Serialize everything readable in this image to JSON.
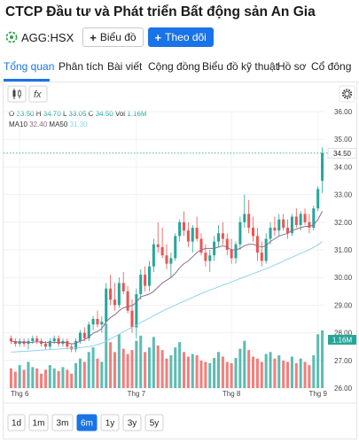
{
  "header": {
    "title": "CTCP Đầu tư và Phát triển Bất động sản An Gia",
    "ticker": "AGG:HSX",
    "chart_button": "Biểu đồ",
    "follow_button": "Theo dõi"
  },
  "tabs": [
    {
      "label": "Tổng quan"
    },
    {
      "label": "Phân tích"
    },
    {
      "label": "Bài viết"
    },
    {
      "label": "Cộng đồng"
    },
    {
      "label": "Biểu đồ kỹ thuật"
    },
    {
      "label": "Hồ sơ"
    },
    {
      "label": "Cổ đông"
    }
  ],
  "active_tab": "Tổng quan",
  "colors": {
    "accent": "#1a73e8",
    "up": "#26a69a",
    "down": "#ef5350",
    "ma10": "#8e6c8a",
    "ma50": "#8fd4ea"
  },
  "chart": {
    "ohlc": {
      "o_label": "O",
      "o_value": "33.50",
      "h_label": "H",
      "h_value": "34.70",
      "l_label": "L",
      "l_value": "33.05",
      "c_label": "C",
      "c_value": "34.50",
      "vol_label": "Vol",
      "vol_value": "1.16M"
    },
    "ma": {
      "ma10_label": "MA10",
      "ma10_value": "32.40",
      "ma50_label": "MA50",
      "ma50_value": "31.30"
    },
    "last_price_label": "34.50",
    "last_volume_label": "1.16M",
    "ranges": [
      "1d",
      "1m",
      "3m",
      "6m",
      "1y",
      "3y",
      "5y"
    ],
    "active_range": "6m",
    "icons": [
      "candlestick-icon",
      "function-icon",
      "settings-icon"
    ]
  },
  "chart_data": {
    "type": "candlestick",
    "y_axis": {
      "ticks": [
        "36.00",
        "35.00",
        "34.00",
        "33.00",
        "32.00",
        "31.00",
        "30.00",
        "29.00",
        "28.00",
        "27.00",
        "26.00"
      ],
      "ylim": [
        26,
        36
      ]
    },
    "x_axis": {
      "ticks": [
        "Thg 6",
        "Thg 7",
        "Thg 8",
        "Thg 9"
      ],
      "tick_positions": [
        2,
        29,
        51,
        71
      ]
    },
    "last_price": 34.5,
    "candles": [
      [
        27.8,
        27.9,
        27.6,
        27.7
      ],
      [
        27.7,
        27.8,
        27.5,
        27.6
      ],
      [
        27.6,
        27.8,
        27.5,
        27.7
      ],
      [
        27.7,
        27.8,
        27.5,
        27.6
      ],
      [
        27.6,
        27.8,
        27.4,
        27.7
      ],
      [
        27.7,
        27.9,
        27.6,
        27.8
      ],
      [
        27.8,
        27.9,
        27.6,
        27.7
      ],
      [
        27.7,
        27.8,
        27.5,
        27.6
      ],
      [
        27.6,
        27.7,
        27.4,
        27.5
      ],
      [
        27.5,
        27.8,
        27.4,
        27.7
      ],
      [
        27.7,
        27.9,
        27.6,
        27.8
      ],
      [
        27.8,
        27.9,
        27.5,
        27.6
      ],
      [
        27.6,
        27.8,
        27.5,
        27.7
      ],
      [
        27.7,
        27.8,
        27.4,
        27.5
      ],
      [
        27.5,
        27.6,
        27.3,
        27.4
      ],
      [
        27.4,
        27.8,
        27.3,
        27.7
      ],
      [
        27.7,
        28.1,
        27.6,
        28.0
      ],
      [
        28.0,
        28.2,
        27.7,
        27.8
      ],
      [
        27.8,
        28.4,
        27.7,
        28.3
      ],
      [
        28.3,
        28.6,
        28.1,
        28.5
      ],
      [
        28.5,
        28.8,
        28.2,
        28.3
      ],
      [
        28.3,
        28.6,
        28.0,
        28.4
      ],
      [
        28.4,
        29.8,
        28.3,
        29.6
      ],
      [
        29.6,
        30.1,
        29.0,
        29.2
      ],
      [
        29.2,
        29.8,
        28.8,
        29.0
      ],
      [
        29.0,
        30.0,
        28.9,
        29.8
      ],
      [
        29.8,
        30.2,
        29.4,
        29.5
      ],
      [
        29.5,
        29.7,
        28.7,
        28.8
      ],
      [
        28.8,
        29.2,
        28.0,
        28.2
      ],
      [
        28.2,
        29.6,
        27.8,
        29.4
      ],
      [
        29.4,
        30.3,
        29.2,
        30.1
      ],
      [
        30.1,
        30.4,
        29.5,
        29.7
      ],
      [
        29.7,
        30.6,
        29.5,
        30.4
      ],
      [
        30.4,
        31.4,
        30.2,
        31.2
      ],
      [
        31.2,
        32.0,
        30.9,
        31.1
      ],
      [
        31.1,
        31.8,
        30.7,
        30.8
      ],
      [
        30.8,
        31.2,
        30.3,
        30.5
      ],
      [
        30.5,
        30.9,
        30.0,
        30.7
      ],
      [
        30.7,
        31.6,
        30.6,
        31.5
      ],
      [
        31.5,
        32.1,
        31.3,
        32.0
      ],
      [
        32.0,
        32.4,
        31.5,
        31.7
      ],
      [
        31.7,
        32.0,
        31.1,
        31.3
      ],
      [
        31.3,
        31.9,
        30.9,
        31.8
      ],
      [
        31.8,
        32.2,
        31.3,
        31.4
      ],
      [
        31.4,
        31.6,
        30.8,
        30.9
      ],
      [
        30.9,
        31.2,
        30.4,
        30.6
      ],
      [
        30.6,
        31.0,
        30.2,
        30.8
      ],
      [
        30.8,
        31.5,
        30.6,
        31.3
      ],
      [
        31.3,
        31.9,
        31.1,
        31.6
      ],
      [
        31.6,
        32.0,
        31.2,
        31.4
      ],
      [
        31.4,
        31.6,
        30.8,
        31.0
      ],
      [
        31.0,
        31.4,
        30.5,
        30.7
      ],
      [
        30.7,
        31.3,
        30.5,
        31.2
      ],
      [
        31.2,
        32.2,
        31.0,
        32.0
      ],
      [
        32.0,
        33.0,
        31.8,
        32.3
      ],
      [
        32.3,
        32.8,
        31.6,
        31.8
      ],
      [
        31.8,
        32.2,
        31.3,
        31.5
      ],
      [
        31.5,
        31.8,
        30.6,
        30.9
      ],
      [
        30.9,
        31.3,
        30.4,
        30.6
      ],
      [
        30.6,
        31.6,
        30.5,
        31.4
      ],
      [
        31.4,
        32.0,
        31.2,
        31.8
      ],
      [
        31.8,
        32.2,
        31.5,
        31.7
      ],
      [
        31.7,
        32.3,
        31.5,
        32.1
      ],
      [
        32.1,
        32.3,
        31.7,
        31.8
      ],
      [
        31.8,
        32.1,
        31.4,
        31.6
      ],
      [
        31.6,
        32.3,
        31.5,
        32.2
      ],
      [
        32.2,
        32.5,
        31.8,
        31.9
      ],
      [
        31.9,
        32.4,
        31.7,
        32.3
      ],
      [
        32.3,
        32.5,
        31.9,
        32.0
      ],
      [
        32.0,
        32.3,
        31.6,
        31.8
      ],
      [
        31.8,
        32.6,
        31.7,
        32.5
      ],
      [
        32.5,
        33.3,
        32.4,
        33.2
      ],
      [
        33.5,
        34.7,
        33.05,
        34.5
      ]
    ],
    "volume_relative": [
      0.3,
      0.25,
      0.35,
      0.28,
      0.4,
      0.32,
      0.3,
      0.22,
      0.28,
      0.35,
      0.3,
      0.26,
      0.32,
      0.28,
      0.22,
      0.38,
      0.45,
      0.4,
      0.55,
      0.62,
      0.45,
      0.4,
      0.98,
      0.7,
      0.55,
      0.82,
      0.6,
      0.52,
      0.58,
      0.72,
      0.8,
      0.55,
      0.62,
      0.78,
      0.65,
      0.58,
      0.45,
      0.5,
      0.62,
      0.7,
      0.55,
      0.48,
      0.52,
      0.5,
      0.42,
      0.4,
      0.38,
      0.46,
      0.55,
      0.48,
      0.4,
      0.38,
      0.46,
      0.6,
      0.72,
      0.58,
      0.48,
      0.45,
      0.4,
      0.52,
      0.55,
      0.45,
      0.5,
      0.42,
      0.4,
      0.48,
      0.38,
      0.45,
      0.4,
      0.35,
      0.5,
      0.82,
      0.88
    ],
    "ma10": [
      27.7,
      27.68,
      27.66,
      27.66,
      27.65,
      27.66,
      27.68,
      27.66,
      27.64,
      27.65,
      27.66,
      27.65,
      27.66,
      27.64,
      27.6,
      27.62,
      27.7,
      27.75,
      27.85,
      27.98,
      28.05,
      28.15,
      28.4,
      28.55,
      28.65,
      28.8,
      28.9,
      28.95,
      28.98,
      29.1,
      29.3,
      29.35,
      29.4,
      29.5,
      29.65,
      29.8,
      29.9,
      30.0,
      30.15,
      30.35,
      30.5,
      30.6,
      30.75,
      30.9,
      31.0,
      31.05,
      31.05,
      31.05,
      31.1,
      31.15,
      31.1,
      31.0,
      31.0,
      31.05,
      31.15,
      31.2,
      31.2,
      31.15,
      31.1,
      31.15,
      31.3,
      31.4,
      31.5,
      31.55,
      31.6,
      31.7,
      31.75,
      31.8,
      31.85,
      31.85,
      31.9,
      32.1,
      32.4
    ],
    "ma50": [
      27.3,
      27.31,
      27.32,
      27.33,
      27.34,
      27.35,
      27.36,
      27.37,
      27.38,
      27.39,
      27.4,
      27.41,
      27.42,
      27.43,
      27.44,
      27.45,
      27.46,
      27.48,
      27.5,
      27.53,
      27.57,
      27.62,
      27.7,
      27.78,
      27.86,
      27.95,
      28.04,
      28.12,
      28.2,
      28.28,
      28.37,
      28.45,
      28.53,
      28.62,
      28.7,
      28.78,
      28.86,
      28.93,
      29.0,
      29.07,
      29.14,
      29.21,
      29.28,
      29.35,
      29.42,
      29.48,
      29.55,
      29.6,
      29.66,
      29.72,
      29.78,
      29.84,
      29.9,
      29.96,
      30.02,
      30.08,
      30.14,
      30.2,
      30.26,
      30.32,
      30.38,
      30.45,
      30.52,
      30.59,
      30.66,
      30.73,
      30.8,
      30.87,
      30.94,
      31.01,
      31.09,
      31.18,
      31.3
    ]
  }
}
